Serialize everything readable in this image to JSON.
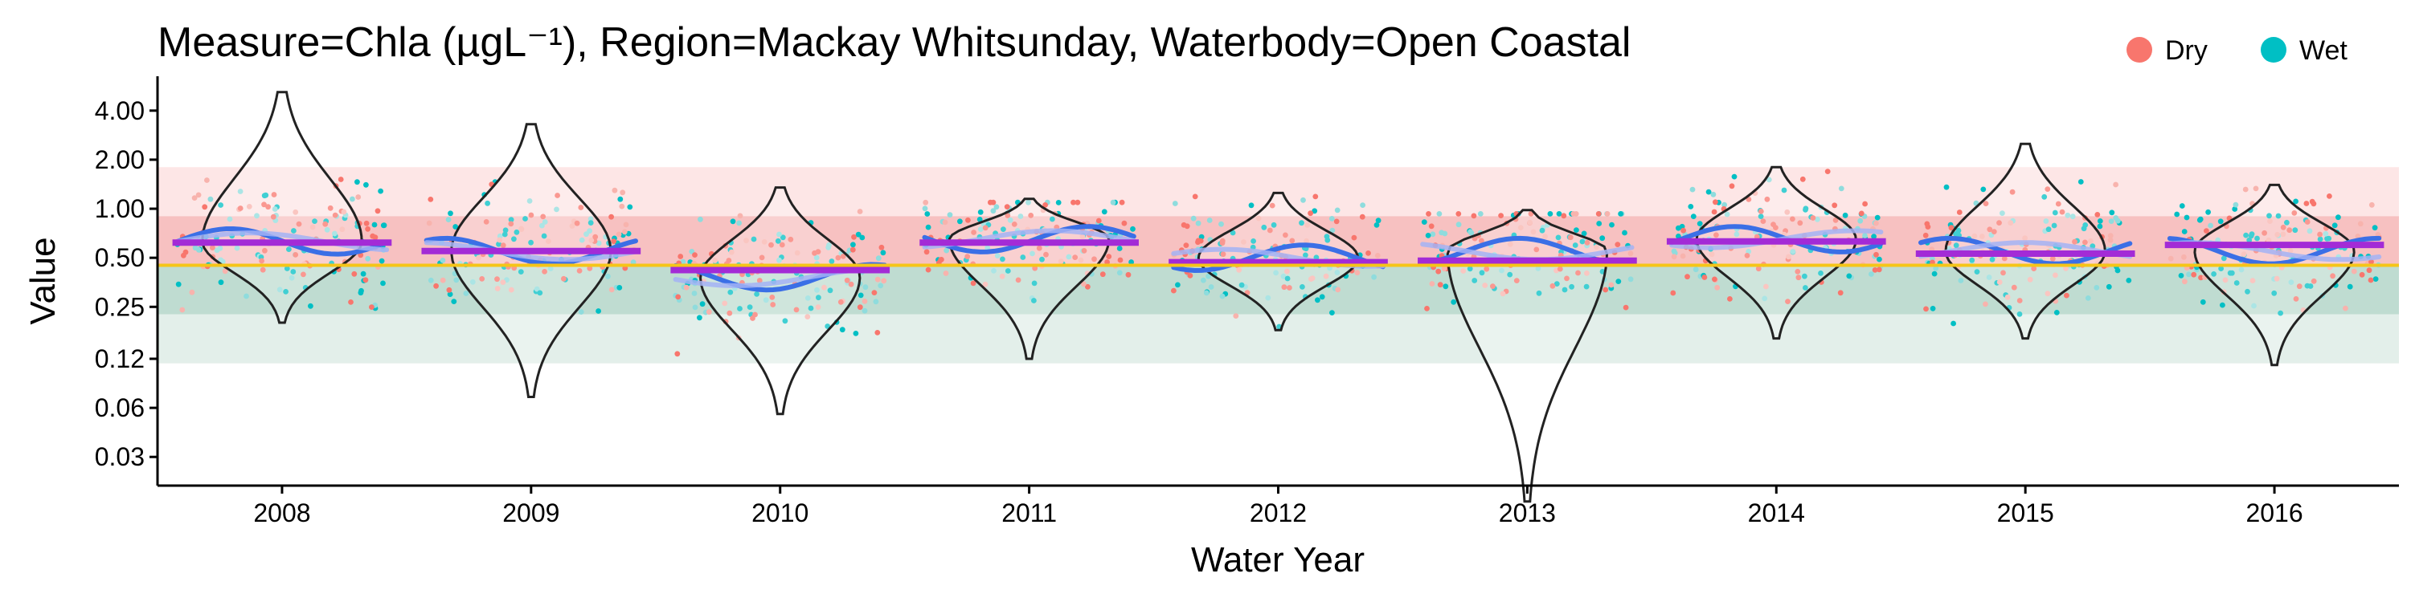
{
  "chart_data": {
    "type": "violin-scatter",
    "title": "Measure=Chla (µgL⁻¹), Region=Mackay Whitsunday, Waterbody=Open Coastal",
    "xlabel": "Water Year",
    "ylabel": "Value",
    "y_scale": "log",
    "ylim": [
      0.02,
      6.5
    ],
    "y_ticks": [
      "4.00",
      "2.00",
      "1.00",
      "0.50",
      "0.25",
      "0.12",
      "0.06",
      "0.03"
    ],
    "y_tick_values": [
      4,
      2,
      1,
      0.5,
      0.25,
      0.12,
      0.06,
      0.03
    ],
    "categories": [
      "2008",
      "2009",
      "2010",
      "2011",
      "2012",
      "2013",
      "2014",
      "2015",
      "2016"
    ],
    "guideline": 0.45,
    "bands": [
      {
        "from": 0.9,
        "to": 1.8,
        "color": "#fde6e6"
      },
      {
        "from": 0.45,
        "to": 0.9,
        "color": "#f7c1c1"
      },
      {
        "from": 0.225,
        "to": 0.45,
        "color": "#bfdcd1"
      },
      {
        "from": 0.1125,
        "to": 0.225,
        "color": "#e3efea"
      }
    ],
    "legend": {
      "position": "top-right",
      "entries": [
        {
          "label": "Dry",
          "color": "#F8766D"
        },
        {
          "label": "Wet",
          "color": "#00BFC4"
        }
      ]
    },
    "annual_mean": [
      0.62,
      0.55,
      0.42,
      0.62,
      0.47,
      0.48,
      0.63,
      0.53,
      0.6
    ],
    "violins": [
      {
        "year": "2008",
        "median": 0.63,
        "min": 0.2,
        "max": 5.2
      },
      {
        "year": "2009",
        "median": 0.55,
        "min": 0.07,
        "max": 3.3
      },
      {
        "year": "2010",
        "median": 0.38,
        "min": 0.055,
        "max": 1.35
      },
      {
        "year": "2011",
        "median": 0.65,
        "min": 0.12,
        "max": 1.15
      },
      {
        "year": "2012",
        "median": 0.5,
        "min": 0.18,
        "max": 1.25
      },
      {
        "year": "2013",
        "median": 0.55,
        "min": 0.016,
        "max": 0.98
      },
      {
        "year": "2014",
        "median": 0.65,
        "min": 0.16,
        "max": 1.8
      },
      {
        "year": "2015",
        "median": 0.55,
        "min": 0.16,
        "max": 2.5
      },
      {
        "year": "2016",
        "median": 0.55,
        "min": 0.11,
        "max": 1.4
      }
    ],
    "series": [
      {
        "name": "Dry",
        "color": "#F8766D"
      },
      {
        "name": "Wet",
        "color": "#00BFC4"
      }
    ]
  }
}
